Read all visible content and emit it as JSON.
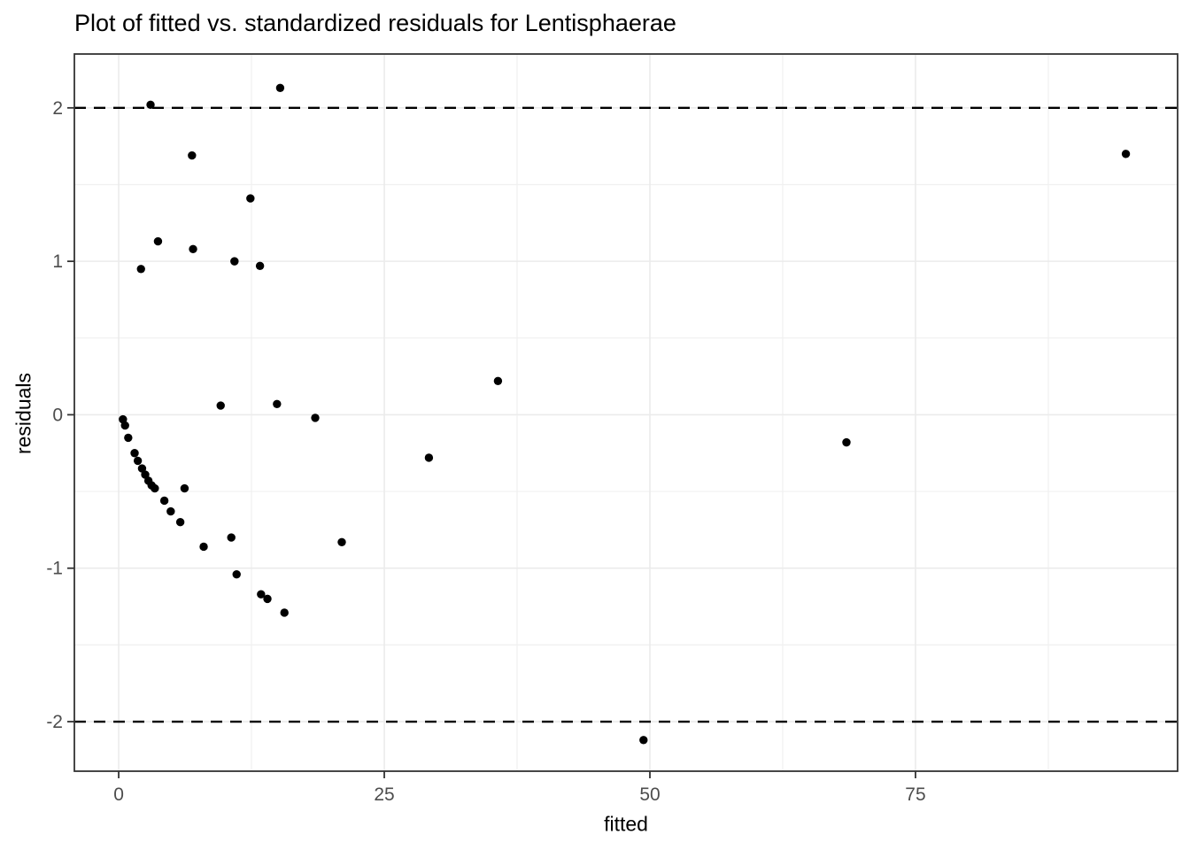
{
  "figure": {
    "kind": "ggplot-style scatter plot",
    "background": "#FFFFFF"
  },
  "chart_data": {
    "type": "scatter",
    "title": "Plot of fitted vs. standardized residuals for Lentisphaerae",
    "xlabel": "fitted",
    "ylabel": "residuals",
    "xlim": [
      -4.17,
      99.67
    ],
    "ylim": [
      -2.323,
      2.351
    ],
    "x_ticks": [
      0,
      25,
      50,
      75
    ],
    "x_tick_labels": [
      "0",
      "25",
      "50",
      "75"
    ],
    "x_minor_ticks": [
      12.5,
      37.5,
      62.5,
      87.5
    ],
    "y_ticks": [
      -2,
      -1,
      0,
      1,
      2
    ],
    "y_tick_labels": [
      "-2",
      "-1",
      "0",
      "1",
      "2"
    ],
    "y_minor_ticks": [
      -1.5,
      -0.5,
      0.5,
      1.5
    ],
    "grid": "major and minor, light gray on white panel",
    "legend": "none",
    "reference_lines": [
      {
        "y": 2,
        "style": "dashed",
        "color": "#000000"
      },
      {
        "y": -2,
        "style": "dashed",
        "color": "#000000"
      }
    ],
    "points": [
      [
        0.4,
        -0.03
      ],
      [
        0.6,
        -0.07
      ],
      [
        0.9,
        -0.15
      ],
      [
        1.5,
        -0.25
      ],
      [
        1.8,
        -0.3
      ],
      [
        2.1,
        0.95
      ],
      [
        2.2,
        -0.35
      ],
      [
        2.5,
        -0.39
      ],
      [
        2.8,
        -0.43
      ],
      [
        3.0,
        2.02
      ],
      [
        3.1,
        -0.46
      ],
      [
        3.4,
        -0.48
      ],
      [
        3.7,
        1.13
      ],
      [
        4.3,
        -0.56
      ],
      [
        4.9,
        -0.63
      ],
      [
        5.8,
        -0.7
      ],
      [
        6.2,
        -0.48
      ],
      [
        6.9,
        1.69
      ],
      [
        7.0,
        1.08
      ],
      [
        8.0,
        -0.86
      ],
      [
        9.6,
        0.06
      ],
      [
        10.6,
        -0.8
      ],
      [
        10.9,
        1.0
      ],
      [
        11.1,
        -1.04
      ],
      [
        12.4,
        1.41
      ],
      [
        13.3,
        0.97
      ],
      [
        13.4,
        -1.17
      ],
      [
        14.0,
        -1.2
      ],
      [
        14.9,
        0.07
      ],
      [
        15.2,
        2.13
      ],
      [
        15.6,
        -1.29
      ],
      [
        18.5,
        -0.02
      ],
      [
        21.0,
        -0.83
      ],
      [
        29.2,
        -0.28
      ],
      [
        35.7,
        0.22
      ],
      [
        49.4,
        -2.12
      ],
      [
        68.5,
        -0.18
      ],
      [
        94.8,
        1.7
      ]
    ],
    "point_count": 38,
    "colors": {
      "point": "#000000",
      "reference_line": "#000000",
      "grid_major": "#EBEBEB",
      "grid_minor": "#F0F0F0",
      "panel_border": "#333333",
      "tick_mark": "#333333",
      "tick_label": "#4D4D4D",
      "axis_label": "#000000",
      "title": "#000000",
      "panel_background": "#FFFFFF"
    }
  }
}
